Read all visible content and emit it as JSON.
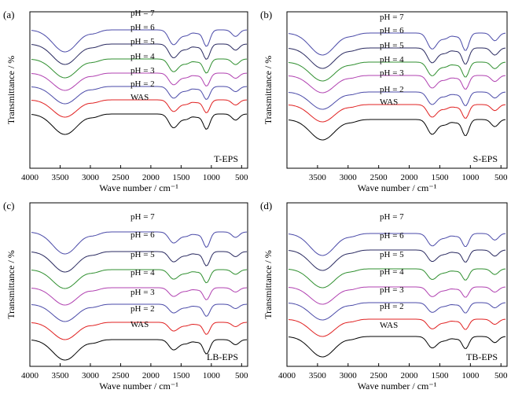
{
  "figure_panels": [
    "(a)",
    "(b)",
    "(c)",
    "(d)"
  ],
  "chart_data": [
    {
      "type": "line",
      "panel_label": "(a)",
      "corner_label": "T-EPS",
      "xlabel": "Wave number / cm⁻¹",
      "ylabel": "Transmittance / %",
      "xlim": [
        4000,
        400
      ],
      "x_reversed": true,
      "xticks": [
        4000,
        3500,
        3000,
        2500,
        2000,
        1500,
        1000,
        500
      ],
      "y_values_shown": false,
      "grid": false,
      "series_labels": [
        "pH = 7",
        "pH = 6",
        "pH = 5",
        "pH = 4",
        "pH = 3",
        "pH = 2",
        "WAS"
      ],
      "series_colors": [
        "#4a4aa8",
        "#2a2a60",
        "#2f8f2f",
        "#b040b0",
        "#4a4aa8",
        "#e02020",
        "#000000"
      ],
      "bands_cm1": [
        3420,
        2930,
        1640,
        1540,
        1400,
        1240,
        1080,
        600
      ],
      "band_depth": [
        1.0,
        0.12,
        0.55,
        0.25,
        0.2,
        0.15,
        0.75,
        0.3
      ]
    },
    {
      "type": "line",
      "panel_label": "(b)",
      "corner_label": "S-EPS",
      "xlabel": "Wave number / cm⁻¹",
      "ylabel": "Transmittance / %",
      "xlim": [
        4000,
        400
      ],
      "x_reversed": true,
      "xticks": [
        3500,
        3000,
        2500,
        2000,
        1500,
        1000,
        500
      ],
      "y_values_shown": false,
      "grid": false,
      "series_labels": [
        "pH = 7",
        "pH = 6",
        "pH = 5",
        "pH = 4",
        "pH = 3",
        "pH = 2",
        "WAS"
      ],
      "series_colors": [
        "#4a4aa8",
        "#2a2a60",
        "#2f8f2f",
        "#b040b0",
        "#4a4aa8",
        "#e02020",
        "#000000"
      ],
      "bands_cm1": [
        3420,
        2930,
        1640,
        1540,
        1400,
        1240,
        1080,
        600
      ],
      "band_depth": [
        1.0,
        0.1,
        0.6,
        0.25,
        0.2,
        0.15,
        0.8,
        0.35
      ]
    },
    {
      "type": "line",
      "panel_label": "(c)",
      "corner_label": "LB-EPS",
      "xlabel": "Wave number / cm⁻¹",
      "ylabel": "Transmittance / %",
      "xlim": [
        4000,
        400
      ],
      "x_reversed": true,
      "xticks": [
        4000,
        3500,
        3000,
        2500,
        2000,
        1500,
        1000,
        500
      ],
      "y_values_shown": false,
      "grid": false,
      "series_labels": [
        "pH = 7",
        "pH = 6",
        "pH = 5",
        "pH = 4",
        "pH = 3",
        "pH = 2",
        "WAS"
      ],
      "series_colors": [
        "#4a4aa8",
        "#2a2a60",
        "#2f8f2f",
        "#b040b0",
        "#4a4aa8",
        "#e02020",
        "#000000"
      ],
      "bands_cm1": [
        3420,
        2930,
        1640,
        1540,
        1400,
        1240,
        1080,
        600
      ],
      "band_depth": [
        1.0,
        0.12,
        0.4,
        0.2,
        0.15,
        0.12,
        0.7,
        0.25
      ]
    },
    {
      "type": "line",
      "panel_label": "(d)",
      "corner_label": "TB-EPS",
      "xlabel": "Wave number / cm⁻¹",
      "ylabel": "Transmittance / %",
      "xlim": [
        4000,
        400
      ],
      "x_reversed": true,
      "xticks": [
        4000,
        3500,
        3000,
        2500,
        2000,
        1500,
        1000,
        500
      ],
      "y_values_shown": false,
      "grid": false,
      "series_labels": [
        "pH = 7",
        "pH = 6",
        "pH = 5",
        "pH = 4",
        "pH = 3",
        "pH = 2",
        "WAS"
      ],
      "series_colors": [
        "#4a4aa8",
        "#2a2a60",
        "#2f8f2f",
        "#b040b0",
        "#4a4aa8",
        "#e02020",
        "#000000"
      ],
      "bands_cm1": [
        3420,
        2930,
        1640,
        1540,
        1400,
        1240,
        1080,
        600
      ],
      "band_depth": [
        1.0,
        0.1,
        0.45,
        0.22,
        0.15,
        0.12,
        0.6,
        0.3
      ]
    }
  ]
}
